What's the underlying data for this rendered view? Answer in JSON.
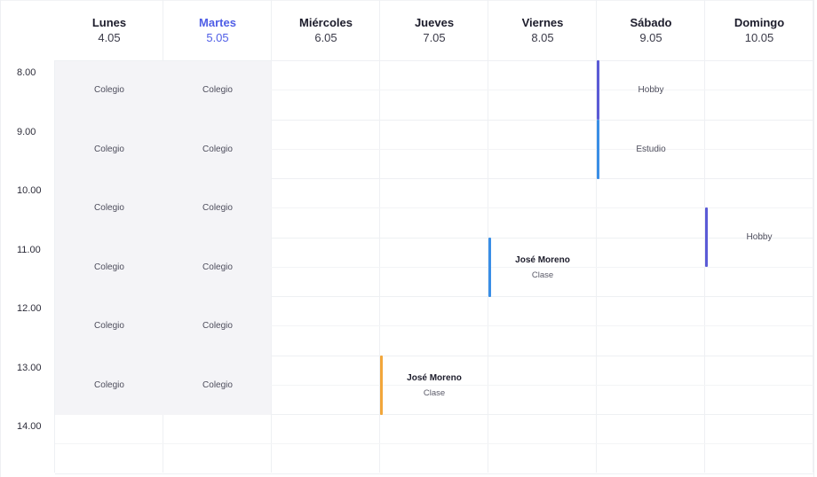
{
  "days": [
    {
      "name": "Lunes",
      "date": "4.05",
      "today": false
    },
    {
      "name": "Martes",
      "date": "5.05",
      "today": true
    },
    {
      "name": "Miércoles",
      "date": "6.05",
      "today": false
    },
    {
      "name": "Jueves",
      "date": "7.05",
      "today": false
    },
    {
      "name": "Viernes",
      "date": "8.05",
      "today": false
    },
    {
      "name": "Sábado",
      "date": "9.05",
      "today": false
    },
    {
      "name": "Domingo",
      "date": "10.05",
      "today": false
    }
  ],
  "times": [
    "8.00",
    "9.00",
    "10.00",
    "11.00",
    "12.00",
    "13.00",
    "14.00"
  ],
  "school": {
    "label": "Colegio",
    "days": [
      0,
      1
    ],
    "hours": [
      0,
      1,
      2,
      3,
      4,
      5
    ]
  },
  "events": [
    {
      "day": 5,
      "start": 8.0,
      "end": 9.0,
      "label": "Hobby",
      "color": "#5b5bd6"
    },
    {
      "day": 5,
      "start": 9.0,
      "end": 10.0,
      "label": "Estudio",
      "color": "#3a8ee6"
    },
    {
      "day": 6,
      "start": 10.5,
      "end": 11.5,
      "label": "Hobby",
      "color": "#5b5bd6"
    },
    {
      "day": 4,
      "start": 11.0,
      "end": 12.0,
      "person": "José Moreno",
      "label": "Clase",
      "color": "#3a8ee6"
    },
    {
      "day": 3,
      "start": 13.0,
      "end": 14.0,
      "person": "José Moreno",
      "label": "Clase",
      "color": "#f2a63a"
    }
  ],
  "colors": {
    "today": "#4f5ee6",
    "school_bg": "#f4f4f7",
    "grid": "#eef0f3"
  }
}
